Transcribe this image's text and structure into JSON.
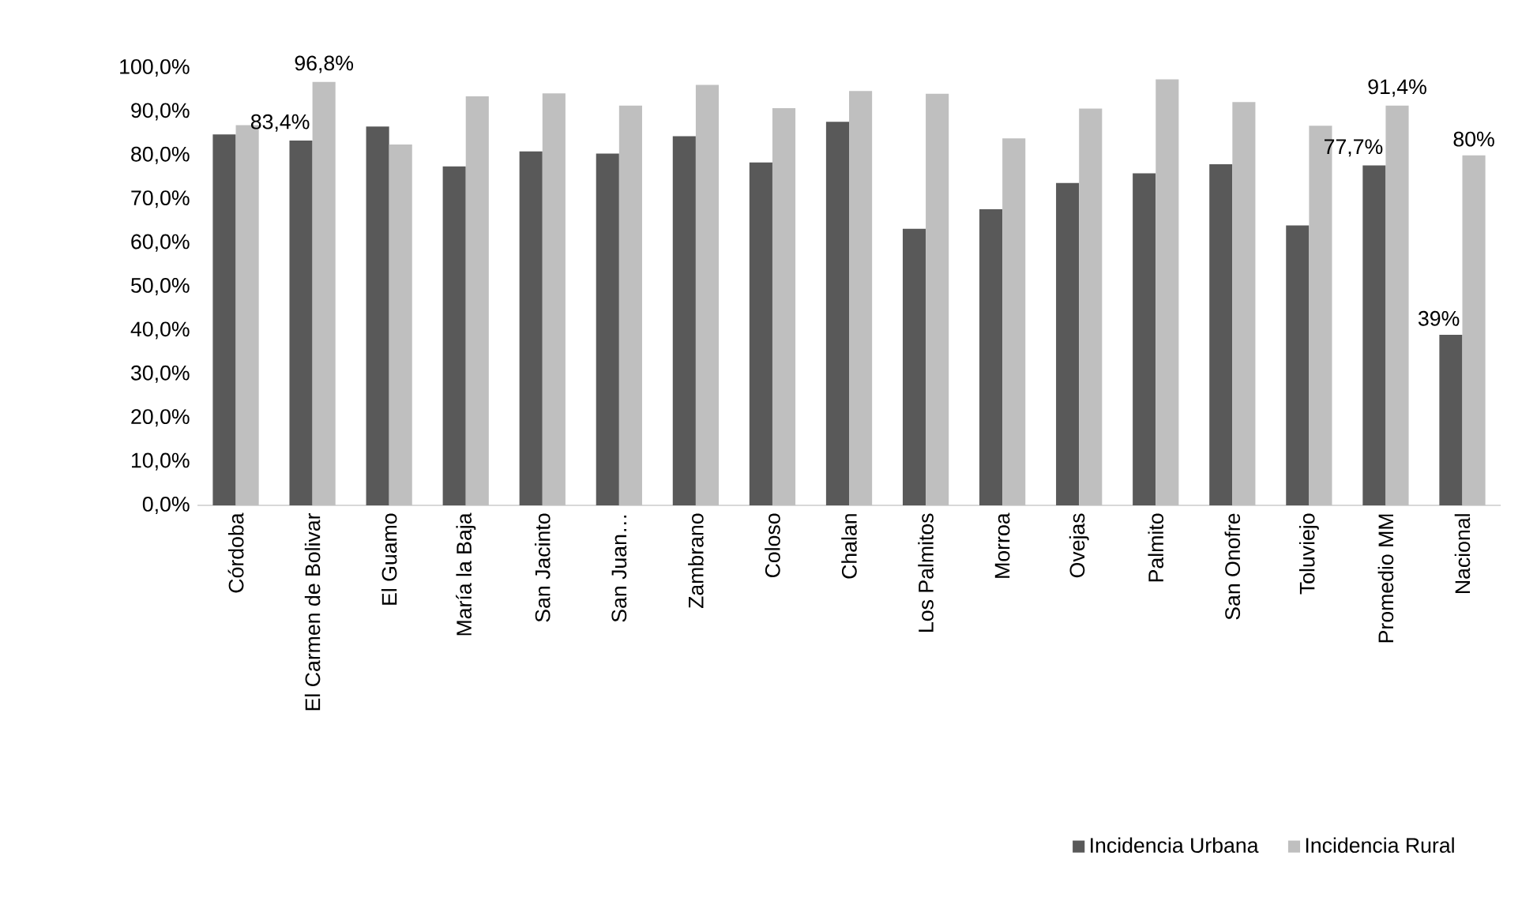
{
  "chart_data": {
    "type": "bar",
    "categories": [
      "Córdoba",
      "El Carmen de Bolivar",
      "El Guamo",
      "María la Baja",
      "San Jacinto",
      "San Juan…",
      "Zambrano",
      "Coloso",
      "Chalan",
      "Los Palmitos",
      "Morroa",
      "Ovejas",
      "Palmito",
      "San Onofre",
      "Toluviejo",
      "Promedio MM",
      "Nacional"
    ],
    "series": [
      {
        "name": "Incidencia Urbana",
        "color": "#595959",
        "values": [
          84.8,
          83.4,
          86.6,
          77.5,
          80.9,
          80.4,
          84.4,
          78.4,
          87.7,
          63.2,
          67.7,
          73.7,
          75.9,
          78.0,
          64.0,
          77.7,
          39
        ],
        "value_labels": [
          null,
          "83,4%",
          null,
          null,
          null,
          null,
          null,
          null,
          null,
          null,
          null,
          null,
          null,
          null,
          null,
          "77,7%",
          "39%"
        ]
      },
      {
        "name": "Incidencia Rural",
        "color": "#bfbfbf",
        "values": [
          86.9,
          96.8,
          82.5,
          93.5,
          94.2,
          91.4,
          96.1,
          90.8,
          94.7,
          94.1,
          83.9,
          90.7,
          97.4,
          92.2,
          86.8,
          91.4,
          80
        ],
        "value_labels": [
          null,
          "96,8%",
          null,
          null,
          null,
          null,
          null,
          null,
          null,
          null,
          null,
          null,
          null,
          null,
          null,
          "91,4%",
          "80%"
        ]
      }
    ],
    "ylim": [
      0,
      100
    ],
    "yticks": [
      {
        "value": 0,
        "label": "0,0%"
      },
      {
        "value": 10,
        "label": "10,0%"
      },
      {
        "value": 20,
        "label": "20,0%"
      },
      {
        "value": 30,
        "label": "30,0%"
      },
      {
        "value": 40,
        "label": "40,0%"
      },
      {
        "value": 50,
        "label": "50,0%"
      },
      {
        "value": 60,
        "label": "60,0%"
      },
      {
        "value": 70,
        "label": "70,0%"
      },
      {
        "value": 80,
        "label": "80,0%"
      },
      {
        "value": 90,
        "label": "90,0%"
      },
      {
        "value": 100,
        "label": "100,0%"
      }
    ],
    "grid": false,
    "legend": "bottom right"
  }
}
